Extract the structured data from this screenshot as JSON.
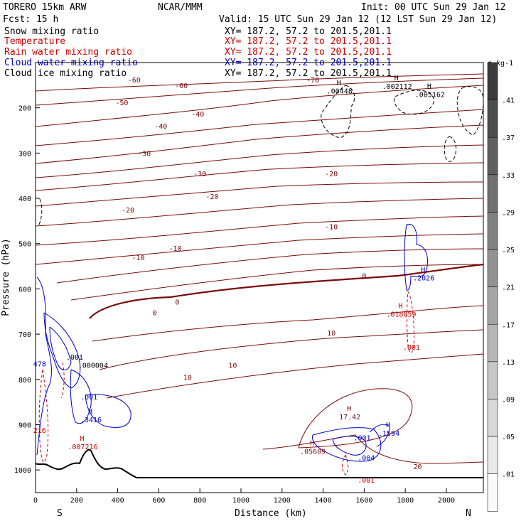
{
  "header": {
    "model": "TORERO  15km ARW",
    "center": "NCAR/MMM",
    "init": "Init: 00 UTC Sun 29 Jan 12",
    "fcst": "Fcst:   15 h",
    "valid": "Valid: 15 UTC Sun 29 Jan 12 (12 LST Sun 29 Jan 12)"
  },
  "legend": [
    {
      "field": "Snow mixing ratio",
      "xy": "XY= 187.2, 57.2 to 201.5,201.1",
      "color": "#000000"
    },
    {
      "field": "Temperature",
      "xy": "XY= 187.2, 57.2 to 201.5,201.1",
      "color": "#cc0000"
    },
    {
      "field": "Rain water mixing ratio",
      "xy": "XY= 187.2, 57.2 to 201.5,201.1",
      "color": "#cc0000"
    },
    {
      "field": "Cloud water mixing ratio",
      "xy": "XY= 187.2, 57.2 to 201.5,201.1",
      "color": "#0000cc"
    },
    {
      "field": "Cloud ice mixing ratio",
      "xy": "XY= 187.2, 57.2 to 201.5,201.1",
      "color": "#000000"
    }
  ],
  "colors": {
    "temperature": "#7a0a0a",
    "rain": "#cc0000",
    "cloud_water": "#0000cc",
    "terrain": "#000000"
  },
  "chart_data": {
    "type": "contour",
    "xlabel": "Distance (km)",
    "ylabel": "Pressure (hPa)",
    "x_ticks": [
      0,
      200,
      400,
      600,
      800,
      1000,
      1200,
      1400,
      1600,
      1800,
      2000
    ],
    "y_ticks": [
      200,
      300,
      400,
      500,
      600,
      700,
      800,
      900,
      1000
    ],
    "xlim": [
      0,
      2180
    ],
    "ylim": [
      1050,
      100
    ],
    "end_labels": {
      "left": "S",
      "right": "N"
    },
    "temperature_labels": [
      {
        "x": 1350,
        "p": 138,
        "text": "-70"
      },
      {
        "x": 480,
        "p": 138,
        "text": "-60"
      },
      {
        "x": 710,
        "p": 150,
        "text": "-60"
      },
      {
        "x": 420,
        "p": 188,
        "text": "-50"
      },
      {
        "x": 610,
        "p": 240,
        "text": "-40"
      },
      {
        "x": 790,
        "p": 213,
        "text": "-40"
      },
      {
        "x": 530,
        "p": 300,
        "text": "-30"
      },
      {
        "x": 800,
        "p": 345,
        "text": "-30"
      },
      {
        "x": 450,
        "p": 425,
        "text": "-20"
      },
      {
        "x": 860,
        "p": 395,
        "text": "-20"
      },
      {
        "x": 1440,
        "p": 345,
        "text": "-20"
      },
      {
        "x": 500,
        "p": 530,
        "text": "-10"
      },
      {
        "x": 680,
        "p": 510,
        "text": "-10"
      },
      {
        "x": 1440,
        "p": 462,
        "text": "-10"
      },
      {
        "x": 580,
        "p": 652,
        "text": "0"
      },
      {
        "x": 690,
        "p": 628,
        "text": "0"
      },
      {
        "x": 1600,
        "p": 570,
        "text": "0"
      },
      {
        "x": 1440,
        "p": 697,
        "text": "10"
      },
      {
        "x": 960,
        "p": 768,
        "text": "10"
      },
      {
        "x": 740,
        "p": 795,
        "text": "10"
      },
      {
        "x": 1860,
        "p": 992,
        "text": "20"
      }
    ],
    "highs": [
      {
        "x": 1480,
        "p": 162,
        "text": ".00448",
        "color": "#000000"
      },
      {
        "x": 1760,
        "p": 152,
        "text": ".002112",
        "color": "#000000"
      },
      {
        "x": 1920,
        "p": 170,
        "text": ".005162",
        "color": "#000000"
      },
      {
        "x": 1890,
        "p": 575,
        "text": ".2026",
        "color": "#0000cc"
      },
      {
        "x": 1780,
        "p": 655,
        "text": ".018059",
        "color": "#cc0000"
      },
      {
        "x": 1530,
        "p": 882,
        "text": "17.42",
        "color": "#7a0a0a"
      },
      {
        "x": 1720,
        "p": 918,
        "text": ".1594",
        "color": "#0000cc"
      },
      {
        "x": 270,
        "p": 888,
        "text": ".3416",
        "color": "#0000cc"
      },
      {
        "x": 230,
        "p": 948,
        "text": ".007216",
        "color": "#cc0000"
      },
      {
        "x": 1350,
        "p": 958,
        "text": ".05609",
        "color": "#7a0a0a"
      }
    ],
    "small_labels": [
      {
        "x": 1830,
        "p": 728,
        "text": ".001",
        "color": "#cc0000"
      },
      {
        "x": 1590,
        "p": 928,
        "text": ".001",
        "color": "#0000cc"
      },
      {
        "x": 1610,
        "p": 972,
        "text": ".004",
        "color": "#0000cc"
      },
      {
        "x": 1610,
        "p": 1022,
        "text": ".001",
        "color": "#cc0000"
      },
      {
        "x": 260,
        "p": 838,
        "text": ".001",
        "color": "#0000cc"
      },
      {
        "x": 280,
        "p": 768,
        "text": ".000004",
        "color": "#000000"
      },
      {
        "x": 190,
        "p": 750,
        "text": ".001",
        "color": "#000000"
      },
      {
        "x": 20,
        "p": 765,
        "text": "478",
        "color": "#0000cc"
      },
      {
        "x": 20,
        "p": 912,
        "text": "216",
        "color": "#cc0000"
      }
    ],
    "colorbar": {
      "unit": "g kg-1",
      "levels": [
        ".41",
        ".37",
        ".33",
        ".29",
        ".25",
        ".21",
        ".17",
        ".13",
        ".09",
        ".05",
        ".01"
      ]
    }
  }
}
